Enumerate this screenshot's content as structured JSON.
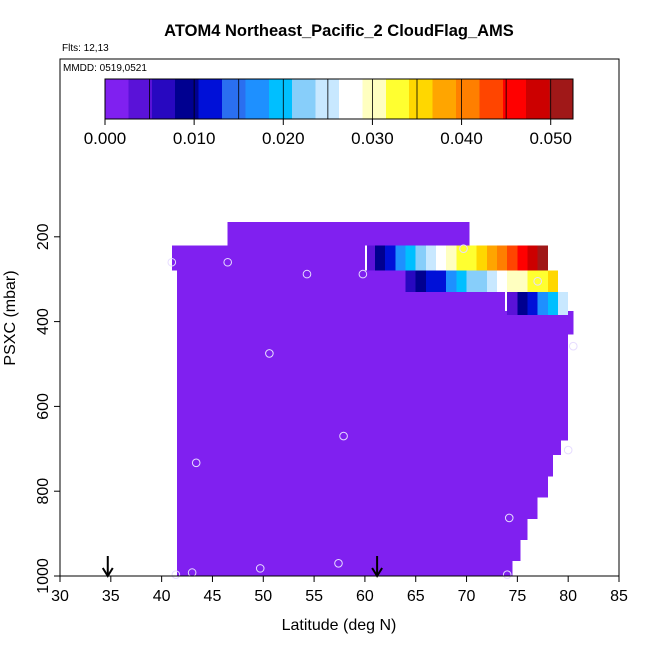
{
  "title": "ATOM4 Northeast_Pacific_2 CloudFlag_AMS",
  "flights_note": "Flts: 12,13",
  "dates_note": "MMDD: 0519,0521",
  "colorbar": {
    "colors": [
      "#8020f0",
      "#5a12d8",
      "#2808c0",
      "#000090",
      "#0010d8",
      "#2a6ff0",
      "#1e90ff",
      "#00bfff",
      "#87cefa",
      "#c8e8ff",
      "#ffffff",
      "#ffffc0",
      "#ffff30",
      "#ffd700",
      "#ffa500",
      "#ff7f00",
      "#ff4500",
      "#ff0000",
      "#cc0000",
      "#a01818"
    ],
    "ticks": [
      {
        "value": 0.0,
        "label": "0.000"
      },
      {
        "value": 0.01,
        "label": "0.010"
      },
      {
        "value": 0.02,
        "label": "0.020"
      },
      {
        "value": 0.03,
        "label": "0.030"
      },
      {
        "value": 0.04,
        "label": "0.040"
      },
      {
        "value": 0.05,
        "label": "0.050"
      }
    ],
    "range": [
      0,
      0.0525
    ]
  },
  "chart_data": {
    "type": "heatmap",
    "title": "ATOM4 Northeast_Pacific_2 CloudFlag_AMS",
    "xlabel": "Latitude (deg N)",
    "ylabel": "PSXC (mbar)",
    "xlim": [
      30,
      85
    ],
    "ylim": [
      1000,
      0
    ],
    "xticks": [
      30,
      35,
      40,
      45,
      50,
      55,
      60,
      65,
      70,
      75,
      80,
      85
    ],
    "yticks": [
      200,
      400,
      600,
      800,
      1000
    ],
    "fill_value": 0.0,
    "regions": [
      {
        "lat": [
          46.5,
          70.3
        ],
        "p": [
          165,
          220
        ]
      },
      {
        "lat": [
          41.0,
          60.0
        ],
        "p": [
          220,
          280
        ]
      },
      {
        "lat": [
          41.5,
          63.0
        ],
        "p": [
          280,
          310
        ]
      },
      {
        "lat": [
          41.5,
          73.8
        ],
        "p": [
          310,
          375
        ]
      },
      {
        "lat": [
          41.5,
          80.5
        ],
        "p": [
          375,
          430
        ]
      },
      {
        "lat": [
          41.5,
          80.0
        ],
        "p": [
          430,
          680
        ]
      },
      {
        "lat": [
          41.5,
          79.3
        ],
        "p": [
          680,
          715
        ]
      },
      {
        "lat": [
          41.5,
          78.5
        ],
        "p": [
          715,
          765
        ]
      },
      {
        "lat": [
          41.5,
          78.0
        ],
        "p": [
          765,
          815
        ]
      },
      {
        "lat": [
          41.5,
          77.0
        ],
        "p": [
          815,
          865
        ]
      },
      {
        "lat": [
          41.5,
          76.0
        ],
        "p": [
          865,
          915
        ]
      },
      {
        "lat": [
          41.5,
          75.3
        ],
        "p": [
          915,
          965
        ]
      },
      {
        "lat": [
          41.5,
          74.5
        ],
        "p": [
          965,
          1000
        ]
      }
    ],
    "gradient_rows": [
      {
        "p": [
          220,
          280
        ],
        "x": [
          60.2,
          61.0,
          62.0,
          63.0,
          64.0,
          65.0,
          66.0,
          67.0,
          68.0,
          69.0,
          70.0,
          71.0,
          72.0,
          73.0,
          74.0,
          75.0,
          76.0,
          77.0
        ],
        "values": [
          0.004,
          0.009,
          0.013,
          0.017,
          0.02,
          0.023,
          0.026,
          0.028,
          0.03,
          0.032,
          0.034,
          0.036,
          0.038,
          0.04,
          0.043,
          0.046,
          0.049,
          0.052
        ]
      },
      {
        "p": [
          280,
          330
        ],
        "x": [
          63.0,
          64.0,
          65.0,
          66.0,
          67.0,
          68.0,
          69.0,
          70.0,
          71.0,
          72.0,
          73.0,
          74.0,
          75.0,
          76.0,
          77.0,
          78.0
        ],
        "values": [
          0.002,
          0.007,
          0.01,
          0.011,
          0.013,
          0.016,
          0.019,
          0.021,
          0.023,
          0.025,
          0.027,
          0.029,
          0.031,
          0.033,
          0.034,
          0.036
        ]
      },
      {
        "p": [
          330,
          385
        ],
        "x": [
          74.0,
          75.0,
          76.0,
          77.0,
          78.0,
          79.0
        ],
        "values": [
          0.004,
          0.01,
          0.012,
          0.016,
          0.02,
          0.024
        ]
      }
    ],
    "sample_points": [
      {
        "lat": 41.0,
        "p": 260
      },
      {
        "lat": 46.5,
        "p": 260
      },
      {
        "lat": 54.3,
        "p": 288
      },
      {
        "lat": 59.8,
        "p": 288
      },
      {
        "lat": 69.7,
        "p": 228
      },
      {
        "lat": 77.0,
        "p": 305
      },
      {
        "lat": 80.5,
        "p": 458
      },
      {
        "lat": 50.6,
        "p": 475
      },
      {
        "lat": 57.9,
        "p": 670
      },
      {
        "lat": 43.4,
        "p": 733
      },
      {
        "lat": 80.0,
        "p": 703
      },
      {
        "lat": 74.2,
        "p": 863
      },
      {
        "lat": 57.4,
        "p": 970
      },
      {
        "lat": 49.7,
        "p": 982
      },
      {
        "lat": 43.0,
        "p": 992
      },
      {
        "lat": 41.4,
        "p": 997
      },
      {
        "lat": 74.0,
        "p": 997
      }
    ],
    "markers": [
      {
        "lat": 34.7,
        "type": "down-arrow"
      },
      {
        "lat": 61.2,
        "type": "down-arrow"
      }
    ]
  }
}
